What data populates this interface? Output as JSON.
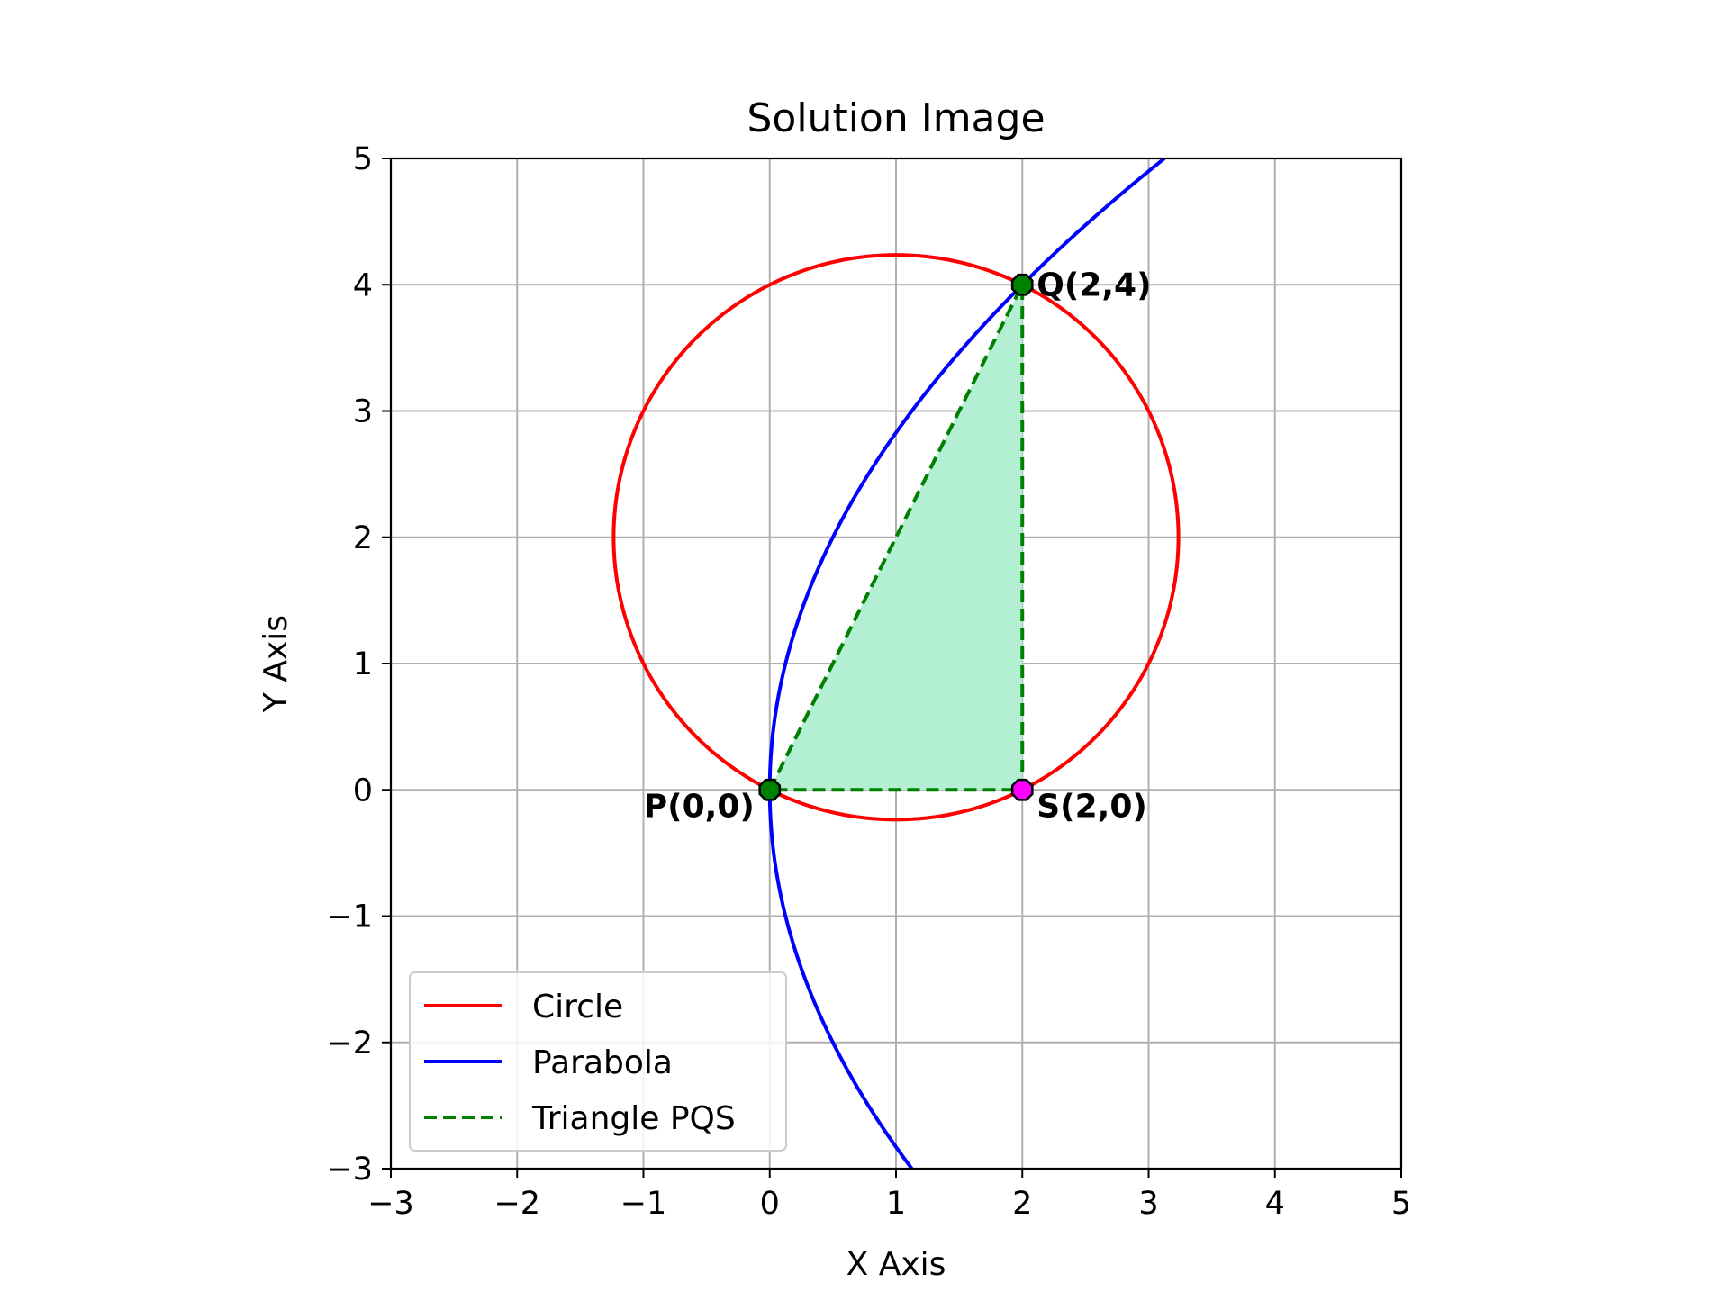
{
  "chart_data": {
    "type": "line",
    "title": "Solution Image",
    "xlabel": "X Axis",
    "ylabel": "Y Axis",
    "xlim": [
      -3,
      5
    ],
    "ylim": [
      -3,
      5
    ],
    "grid": true,
    "aspect": "equal",
    "x_ticks": [
      -3,
      -2,
      -1,
      0,
      1,
      2,
      3,
      4,
      5
    ],
    "y_ticks": [
      -3,
      -2,
      -1,
      0,
      1,
      2,
      3,
      4,
      5
    ],
    "x_tick_labels": [
      "−3",
      "−2",
      "−1",
      "0",
      "1",
      "2",
      "3",
      "4",
      "5"
    ],
    "y_tick_labels": [
      "−3",
      "−2",
      "−1",
      "0",
      "1",
      "2",
      "3",
      "4",
      "5"
    ],
    "series": [
      {
        "name": "Circle",
        "kind": "circle",
        "center": [
          1,
          2
        ],
        "radius": 2.236,
        "color": "#ff0000",
        "style": "solid"
      },
      {
        "name": "Parabola",
        "kind": "parabola",
        "equation": "y^2 = 8x",
        "y_range": [
          -3,
          5
        ],
        "color": "#0000ff",
        "style": "solid"
      },
      {
        "name": "Triangle PQS",
        "kind": "polygon",
        "x": [
          0,
          2,
          2,
          0
        ],
        "y": [
          0,
          4,
          0,
          0
        ],
        "color": "#008000",
        "style": "dashed",
        "fill": "#b3f0d3"
      }
    ],
    "points": [
      {
        "label": "P(0,0)",
        "x": 0,
        "y": 0,
        "color": "#008000"
      },
      {
        "label": "Q(2,4)",
        "x": 2,
        "y": 4,
        "color": "#008000"
      },
      {
        "label": "S(2,0)",
        "x": 2,
        "y": 0,
        "color": "#ff00ff"
      }
    ],
    "legend": {
      "position": "lower-left",
      "entries": [
        "Circle",
        "Parabola",
        "Triangle PQS"
      ]
    }
  }
}
